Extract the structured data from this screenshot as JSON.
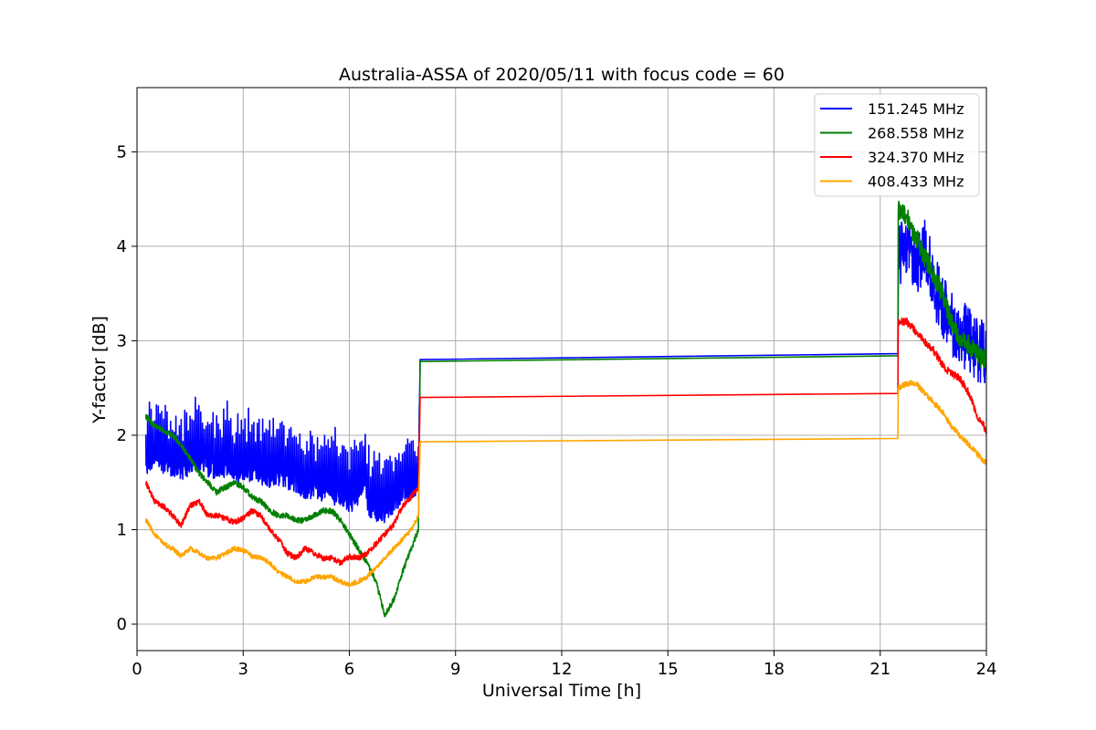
{
  "chart_data": {
    "type": "line",
    "title": "Australia-ASSA of 2020/05/11 with focus code = 60",
    "xlabel": "Universal Time [h]",
    "ylabel": "Y-factor [dB]",
    "xlim": [
      0,
      24
    ],
    "ylim": [
      -0.28,
      5.68
    ],
    "xticks": [
      0,
      3,
      6,
      9,
      12,
      15,
      18,
      21,
      24
    ],
    "yticks": [
      0,
      1,
      2,
      3,
      4,
      5
    ],
    "grid": true,
    "legend_position": "top-right",
    "series": [
      {
        "name": "151.245 MHz",
        "color": "#0000ff",
        "x": [
          0.25,
          0.5,
          0.75,
          1.0,
          1.25,
          1.5,
          1.75,
          2.0,
          2.25,
          2.5,
          2.75,
          3.0,
          3.25,
          3.5,
          3.75,
          4.0,
          4.25,
          4.5,
          4.75,
          5.0,
          5.25,
          5.4,
          5.5,
          5.75,
          6.0,
          6.25,
          6.45,
          6.5,
          6.6,
          6.75,
          7.0,
          7.25,
          7.5,
          7.75,
          7.95,
          8.0,
          21.5,
          21.51,
          21.75,
          22.0,
          22.25,
          22.5,
          22.75,
          23.0,
          23.25,
          23.5,
          23.75,
          24.0
        ],
        "y": [
          1.7,
          1.75,
          1.72,
          1.68,
          1.65,
          1.7,
          1.75,
          1.68,
          1.65,
          1.68,
          1.62,
          1.6,
          1.62,
          1.6,
          1.55,
          1.58,
          1.55,
          1.5,
          1.45,
          1.45,
          1.42,
          1.5,
          1.4,
          1.35,
          1.3,
          1.35,
          1.6,
          1.3,
          1.25,
          1.2,
          1.2,
          1.3,
          1.4,
          1.4,
          1.5,
          2.8,
          2.88,
          3.9,
          4.0,
          3.7,
          4.0,
          3.6,
          3.4,
          3.2,
          3.1,
          3.0,
          2.9,
          2.9
        ]
      },
      {
        "name": "268.558 MHz",
        "color": "#008000",
        "x": [
          0.25,
          0.5,
          0.75,
          1.0,
          1.25,
          1.5,
          1.75,
          2.0,
          2.25,
          2.5,
          2.75,
          3.0,
          3.25,
          3.5,
          3.75,
          4.0,
          4.25,
          4.5,
          4.75,
          5.0,
          5.25,
          5.5,
          5.75,
          6.0,
          6.25,
          6.5,
          6.75,
          7.0,
          7.25,
          7.5,
          7.75,
          7.95,
          8.0,
          21.5,
          21.51,
          21.75,
          22.0,
          22.25,
          22.5,
          22.75,
          23.0,
          23.25,
          23.5,
          23.75,
          24.0
        ],
        "y": [
          2.2,
          2.1,
          2.05,
          2.0,
          1.9,
          1.75,
          1.6,
          1.5,
          1.4,
          1.45,
          1.5,
          1.45,
          1.35,
          1.3,
          1.2,
          1.15,
          1.15,
          1.1,
          1.1,
          1.15,
          1.2,
          1.2,
          1.1,
          0.95,
          0.8,
          0.65,
          0.45,
          0.1,
          0.25,
          0.55,
          0.8,
          1.0,
          2.78,
          2.86,
          4.4,
          4.3,
          4.1,
          3.9,
          3.7,
          3.5,
          3.2,
          3.0,
          2.95,
          2.85,
          2.8
        ]
      },
      {
        "name": "324.370 MHz",
        "color": "#ff0000",
        "x": [
          0.25,
          0.5,
          0.75,
          1.0,
          1.25,
          1.5,
          1.75,
          2.0,
          2.25,
          2.5,
          2.75,
          3.0,
          3.25,
          3.5,
          3.75,
          4.0,
          4.25,
          4.5,
          4.75,
          5.0,
          5.25,
          5.5,
          5.75,
          6.0,
          6.25,
          6.5,
          6.75,
          7.0,
          7.25,
          7.5,
          7.75,
          7.95,
          8.0,
          21.5,
          21.51,
          21.75,
          22.0,
          22.25,
          22.5,
          22.75,
          23.0,
          23.25,
          23.5,
          23.75,
          24.0
        ],
        "y": [
          1.5,
          1.3,
          1.25,
          1.15,
          1.05,
          1.25,
          1.3,
          1.15,
          1.15,
          1.12,
          1.08,
          1.12,
          1.2,
          1.15,
          1.0,
          0.9,
          0.75,
          0.7,
          0.8,
          0.75,
          0.7,
          0.7,
          0.65,
          0.72,
          0.7,
          0.75,
          0.85,
          0.95,
          1.05,
          1.25,
          1.35,
          1.45,
          2.4,
          2.46,
          3.2,
          3.2,
          3.1,
          3.0,
          2.9,
          2.75,
          2.65,
          2.6,
          2.45,
          2.2,
          2.05
        ]
      },
      {
        "name": "408.433 MHz",
        "color": "#ffa500",
        "x": [
          0.25,
          0.5,
          0.75,
          1.0,
          1.25,
          1.5,
          1.75,
          2.0,
          2.25,
          2.5,
          2.75,
          3.0,
          3.25,
          3.5,
          3.75,
          4.0,
          4.25,
          4.5,
          4.75,
          5.0,
          5.25,
          5.5,
          5.75,
          6.0,
          6.25,
          6.5,
          6.75,
          7.0,
          7.25,
          7.5,
          7.75,
          7.95,
          8.0,
          21.5,
          21.51,
          21.75,
          22.0,
          22.25,
          22.5,
          22.75,
          23.0,
          23.25,
          23.5,
          23.75,
          24.0
        ],
        "y": [
          1.1,
          0.95,
          0.85,
          0.8,
          0.72,
          0.8,
          0.75,
          0.7,
          0.7,
          0.75,
          0.8,
          0.78,
          0.72,
          0.7,
          0.65,
          0.55,
          0.5,
          0.45,
          0.45,
          0.5,
          0.5,
          0.5,
          0.45,
          0.42,
          0.45,
          0.5,
          0.6,
          0.7,
          0.8,
          0.9,
          1.0,
          1.15,
          1.93,
          1.98,
          2.5,
          2.55,
          2.55,
          2.45,
          2.35,
          2.25,
          2.1,
          2.0,
          1.9,
          1.8,
          1.7
        ]
      }
    ]
  }
}
